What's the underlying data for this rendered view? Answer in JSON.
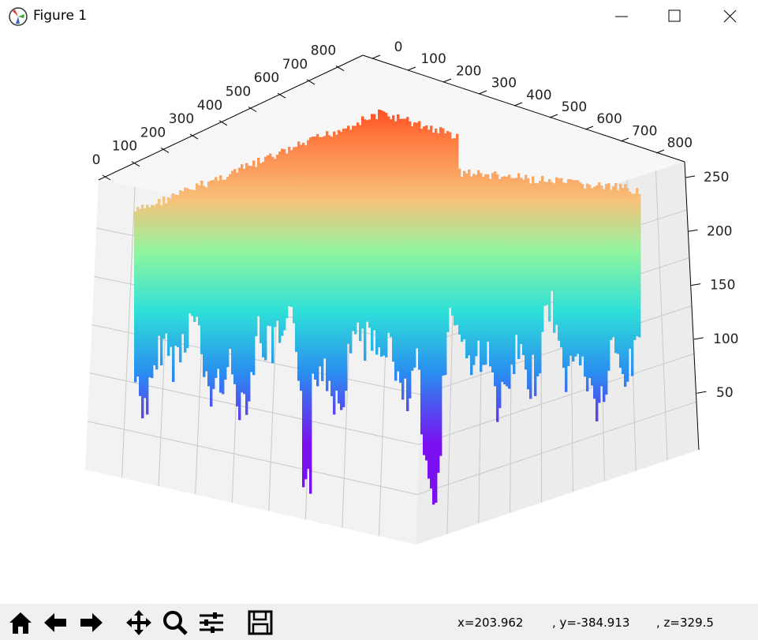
{
  "window": {
    "title": "Figure 1"
  },
  "axes": {
    "x_ticks": [
      0,
      100,
      200,
      300,
      400,
      500,
      600,
      700,
      800
    ],
    "y_ticks": [
      0,
      100,
      200,
      300,
      400,
      500,
      600,
      700,
      800
    ],
    "z_ticks": [
      250,
      200,
      150,
      100,
      50
    ]
  },
  "status": {
    "x": "x=203.962",
    "y": ", y=-384.913",
    "z": ", z=329.5"
  }
}
